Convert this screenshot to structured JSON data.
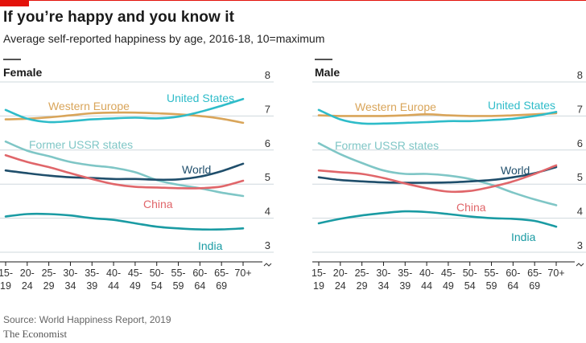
{
  "title": "If you’re happy and you know it",
  "subtitle": "Average self-reported happiness by age, 2016-18, 10=maximum",
  "source": "Source: World Happiness Report, 2019",
  "brand": "The Economist",
  "chart_data": [
    {
      "type": "line",
      "title": "Female",
      "categories": [
        [
          "15-",
          "19"
        ],
        [
          "20-",
          "24"
        ],
        [
          "25-",
          "29"
        ],
        [
          "30-",
          "34"
        ],
        [
          "35-",
          "39"
        ],
        [
          "40-",
          "44"
        ],
        [
          "45-",
          "49"
        ],
        [
          "50-",
          "54"
        ],
        [
          "55-",
          "59"
        ],
        [
          "60-",
          "64"
        ],
        [
          "65-",
          "69"
        ],
        [
          "70+",
          ""
        ]
      ],
      "ylim": [
        3,
        8
      ],
      "yticks": [
        "3",
        "4",
        "5",
        "6",
        "7",
        "8"
      ],
      "series": [
        {
          "name": "Western Europe",
          "color": "#d9a55a",
          "values": [
            6.9,
            6.92,
            6.96,
            7.02,
            7.08,
            7.1,
            7.1,
            7.08,
            7.05,
            7.0,
            6.92,
            6.8
          ]
        },
        {
          "name": "United States",
          "color": "#2ebcc9",
          "values": [
            7.18,
            6.92,
            6.82,
            6.85,
            6.9,
            6.93,
            6.95,
            6.93,
            6.98,
            7.12,
            7.3,
            7.5
          ]
        },
        {
          "name": "Former USSR states",
          "color": "#7fc6c6",
          "values": [
            6.25,
            5.98,
            5.82,
            5.65,
            5.55,
            5.48,
            5.35,
            5.12,
            4.98,
            4.88,
            4.75,
            4.65
          ]
        },
        {
          "name": "World",
          "color": "#1f4e6b",
          "values": [
            5.4,
            5.32,
            5.25,
            5.2,
            5.18,
            5.15,
            5.15,
            5.13,
            5.14,
            5.22,
            5.38,
            5.6
          ]
        },
        {
          "name": "China",
          "color": "#e0666a",
          "values": [
            5.85,
            5.65,
            5.5,
            5.32,
            5.15,
            5.0,
            4.92,
            4.9,
            4.88,
            4.88,
            4.93,
            5.1
          ]
        },
        {
          "name": "India",
          "color": "#1a9ba3",
          "values": [
            4.05,
            4.12,
            4.12,
            4.08,
            4.0,
            3.95,
            3.85,
            3.75,
            3.7,
            3.67,
            3.67,
            3.7
          ]
        }
      ],
      "labels": {
        "Western Europe": "Western Europe",
        "United States": "United States",
        "Former USSR states": "Former USSR states",
        "World": "World",
        "China": "China",
        "India": "India"
      }
    },
    {
      "type": "line",
      "title": "Male",
      "categories": [
        [
          "15-",
          "19"
        ],
        [
          "20-",
          "24"
        ],
        [
          "25-",
          "29"
        ],
        [
          "30-",
          "34"
        ],
        [
          "35-",
          "39"
        ],
        [
          "40-",
          "44"
        ],
        [
          "45-",
          "49"
        ],
        [
          "50-",
          "54"
        ],
        [
          "55-",
          "59"
        ],
        [
          "60-",
          "64"
        ],
        [
          "65-",
          "69"
        ],
        [
          "70+",
          ""
        ]
      ],
      "ylim": [
        3,
        8
      ],
      "yticks": [
        "3",
        "4",
        "5",
        "6",
        "7",
        "8"
      ],
      "series": [
        {
          "name": "Western Europe",
          "color": "#d9a55a",
          "values": [
            7.02,
            7.0,
            7.0,
            7.0,
            7.02,
            7.05,
            7.02,
            7.0,
            7.0,
            7.02,
            7.05,
            7.08
          ]
        },
        {
          "name": "United States",
          "color": "#2ebcc9",
          "values": [
            7.18,
            6.9,
            6.78,
            6.78,
            6.8,
            6.82,
            6.85,
            6.85,
            6.88,
            6.92,
            7.0,
            7.12
          ]
        },
        {
          "name": "Former USSR states",
          "color": "#7fc6c6",
          "values": [
            6.2,
            5.88,
            5.62,
            5.4,
            5.3,
            5.3,
            5.25,
            5.15,
            4.98,
            4.75,
            4.55,
            4.38
          ]
        },
        {
          "name": "World",
          "color": "#1f4e6b",
          "values": [
            5.2,
            5.12,
            5.08,
            5.05,
            5.04,
            5.04,
            5.05,
            5.08,
            5.12,
            5.2,
            5.32,
            5.5
          ]
        },
        {
          "name": "China",
          "color": "#e0666a",
          "values": [
            5.4,
            5.35,
            5.3,
            5.18,
            5.02,
            4.88,
            4.78,
            4.8,
            4.92,
            5.08,
            5.3,
            5.55
          ]
        },
        {
          "name": "India",
          "color": "#1a9ba3",
          "values": [
            3.85,
            3.98,
            4.08,
            4.15,
            4.2,
            4.18,
            4.12,
            4.05,
            4.0,
            3.98,
            3.92,
            3.75
          ]
        }
      ],
      "labels": {
        "Western Europe": "Western Europe",
        "United States": "United States",
        "Former USSR states": "Former USSR states",
        "World": "World",
        "China": "China",
        "India": "India"
      }
    }
  ]
}
